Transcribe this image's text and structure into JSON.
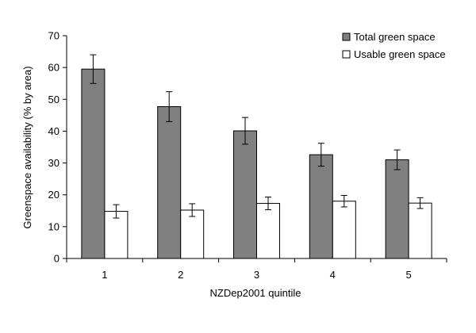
{
  "chart_data": {
    "type": "bar",
    "categories": [
      "1",
      "2",
      "3",
      "4",
      "5"
    ],
    "series": [
      {
        "name": "Total green space",
        "values": [
          59.5,
          47.7,
          40.1,
          32.6,
          31.0
        ],
        "error": [
          4.5,
          4.7,
          4.2,
          3.6,
          3.1
        ],
        "color": "#808080"
      },
      {
        "name": "Usable green space",
        "values": [
          14.8,
          15.2,
          17.3,
          18.0,
          17.4
        ],
        "error": [
          2.1,
          2.0,
          2.0,
          1.8,
          1.7
        ],
        "color": "#ffffff"
      }
    ],
    "xlabel": "NZDep2001 quintile",
    "ylabel": "Greenspace availability (% by area)",
    "ylim": [
      0,
      70
    ],
    "yticks": [
      "0",
      "10",
      "20",
      "30",
      "40",
      "50",
      "60",
      "70"
    ],
    "grid": false,
    "legend_position": "top-right"
  }
}
